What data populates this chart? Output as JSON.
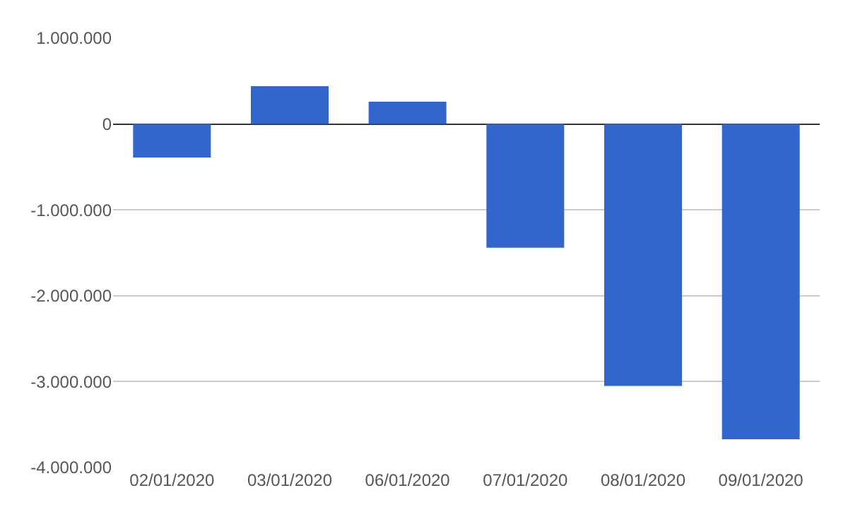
{
  "chart_data": {
    "type": "bar",
    "categories": [
      "02/01/2020",
      "03/01/2020",
      "06/01/2020",
      "07/01/2020",
      "08/01/2020",
      "09/01/2020"
    ],
    "values": [
      -390000,
      440000,
      260000,
      -1440000,
      -3050000,
      -3670000
    ],
    "color": "#3366cc",
    "ylim": [
      -4000000,
      1000000
    ],
    "yticks": [
      {
        "value": 1000000,
        "label": "1.000.000"
      },
      {
        "value": 0,
        "label": "0"
      },
      {
        "value": -1000000,
        "label": "-1.000.000"
      },
      {
        "value": -2000000,
        "label": "-2.000.000"
      },
      {
        "value": -3000000,
        "label": "-3.000.000"
      },
      {
        "value": -4000000,
        "label": "-4.000.000"
      }
    ],
    "grid": "y",
    "legend": false
  }
}
